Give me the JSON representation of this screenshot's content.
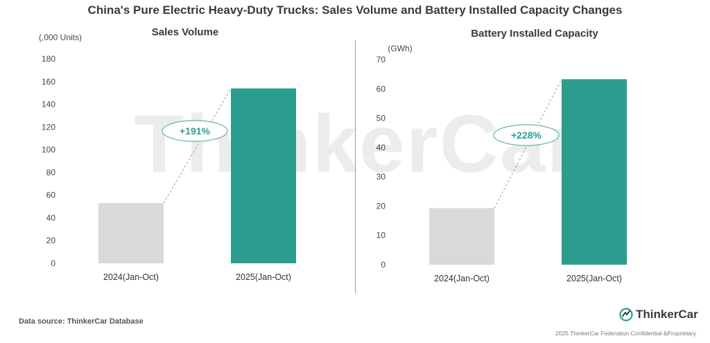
{
  "title": "China's Pure Electric Heavy-Duty Trucks: Sales Volume and Battery Installed Capacity Changes",
  "watermark": "ThinkerCar",
  "colors": {
    "bar_2024": "#d9d9d9",
    "bar_2025": "#2a9d8f",
    "ellipse": "#5bb5aa",
    "growth_text": "#2a9d8f",
    "dashed_line": "#9a9a9a"
  },
  "chart_data": [
    {
      "type": "bar",
      "title": "Sales Volume",
      "unit_label": "(,000 Units)",
      "categories": [
        "2024(Jan-Oct)",
        "2025(Jan-Oct)"
      ],
      "values": [
        53,
        154
      ],
      "ylim": [
        0,
        180
      ],
      "yticks": [
        0,
        20,
        40,
        60,
        80,
        100,
        120,
        140,
        160,
        180
      ],
      "growth_label": "+191%",
      "grid": false,
      "legend": "none"
    },
    {
      "type": "bar",
      "title": "Battery Installed Capacity",
      "unit_label": "(GWh)",
      "categories": [
        "2024(Jan-Oct)",
        "2025(Jan-Oct)"
      ],
      "values": [
        19.3,
        63.3
      ],
      "ylim": [
        0,
        70
      ],
      "yticks": [
        0,
        10,
        20,
        30,
        40,
        50,
        60,
        70
      ],
      "growth_label": "+228%",
      "grid": false,
      "legend": "none"
    }
  ],
  "footer": {
    "source": "Data source: ThinkerCar Database",
    "logo_text": "ThinkerCar",
    "copyright": "2025 ThinkerCar Federation Confidential &Proprietary"
  }
}
